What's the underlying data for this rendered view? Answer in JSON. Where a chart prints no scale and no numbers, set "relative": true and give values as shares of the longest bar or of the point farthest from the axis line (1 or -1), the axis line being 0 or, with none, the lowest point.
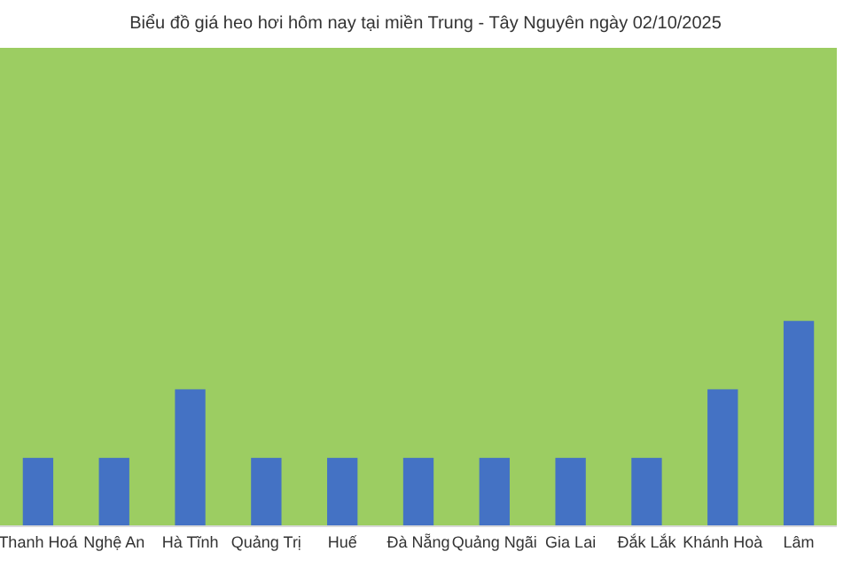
{
  "chart_data": {
    "type": "bar",
    "title": "Biểu đồ giá heo hơi hôm nay tại miền Trung - Tây Nguyên ngày 02/10/2025",
    "categories": [
      "Thanh Hoá",
      "Nghệ An",
      "Hà Tĩnh",
      "Quảng Trị",
      "Huế",
      "Đà Nẵng",
      "Quảng Ngãi",
      "Gia Lai",
      "Đắk Lắk",
      "Khánh Hoà",
      "Lâm"
    ],
    "values": [
      0.333,
      0.333,
      0.667,
      0.333,
      0.333,
      0.333,
      0.333,
      0.333,
      0.333,
      0.667,
      1
    ],
    "color": "#4472c4",
    "relative": true
  }
}
